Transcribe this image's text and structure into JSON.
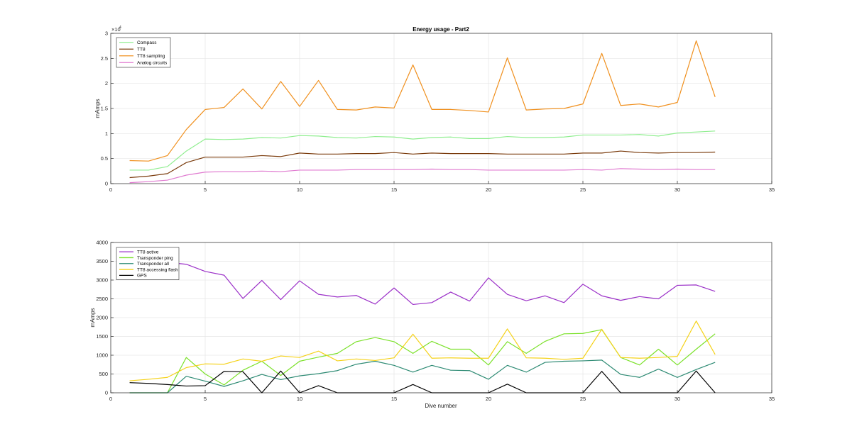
{
  "chart_data": [
    {
      "type": "line",
      "title": "Energy usage - Part2",
      "xlabel": "",
      "ylabel": "mAmps",
      "xlim": [
        0,
        35
      ],
      "ylim": [
        0,
        30000
      ],
      "xticks": [
        0,
        5,
        10,
        15,
        20,
        25,
        30,
        35
      ],
      "yticks": [
        0,
        5000,
        10000,
        15000,
        20000,
        25000,
        30000
      ],
      "ytick_labels": [
        "0",
        "0.5",
        "1",
        "1.5",
        "2",
        "2.5",
        "3"
      ],
      "exponent_label": "×10",
      "exponent_power": "4",
      "grid": true,
      "legend_position": "top-left",
      "x": [
        1,
        2,
        3,
        4,
        5,
        6,
        7,
        8,
        9,
        10,
        11,
        12,
        13,
        14,
        15,
        16,
        17,
        18,
        19,
        20,
        21,
        22,
        23,
        24,
        25,
        26,
        27,
        28,
        29,
        30,
        31,
        32
      ],
      "series": [
        {
          "name": "Compass",
          "color": "#90ee90",
          "values": [
            2700,
            2700,
            3400,
            6500,
            8900,
            8800,
            8900,
            9200,
            9100,
            9600,
            9500,
            9200,
            9100,
            9400,
            9300,
            8900,
            9200,
            9300,
            9000,
            9000,
            9400,
            9200,
            9200,
            9300,
            9700,
            9700,
            9700,
            9800,
            9500,
            10100,
            10300,
            10500
          ]
        },
        {
          "name": "TT8",
          "color": "#7a3b0c",
          "values": [
            1200,
            1500,
            2000,
            4200,
            5300,
            5300,
            5300,
            5600,
            5400,
            6100,
            5900,
            5900,
            6000,
            6000,
            6200,
            5900,
            6100,
            6000,
            6000,
            6000,
            5900,
            5900,
            5900,
            5900,
            6100,
            6100,
            6500,
            6200,
            6100,
            6200,
            6200,
            6300
          ]
        },
        {
          "name": "TT8 sampling",
          "color": "#f0901e",
          "values": [
            4600,
            4500,
            5600,
            10800,
            14800,
            15200,
            18900,
            14900,
            20400,
            15400,
            20600,
            14800,
            14700,
            15300,
            15100,
            23700,
            14800,
            14800,
            14600,
            14300,
            25100,
            14700,
            14900,
            15000,
            15900,
            26000,
            15600,
            15900,
            15300,
            16200,
            28500,
            17300
          ]
        },
        {
          "name": "Analog circuits",
          "color": "#e07ad0",
          "values": [
            200,
            400,
            700,
            1700,
            2300,
            2400,
            2400,
            2500,
            2400,
            2700,
            2700,
            2700,
            2800,
            2800,
            2800,
            2800,
            2900,
            2800,
            2800,
            2700,
            2700,
            2700,
            2700,
            2700,
            2800,
            2700,
            3000,
            2900,
            2800,
            2900,
            2800,
            2800
          ]
        }
      ]
    },
    {
      "type": "line",
      "title": "",
      "xlabel": "Dive number",
      "ylabel": "mAmps",
      "xlim": [
        0,
        35
      ],
      "ylim": [
        0,
        4000
      ],
      "xticks": [
        0,
        5,
        10,
        15,
        20,
        25,
        30,
        35
      ],
      "yticks": [
        0,
        500,
        1000,
        1500,
        2000,
        2500,
        3000,
        3500,
        4000
      ],
      "ytick_labels": [
        "0",
        "500",
        "1000",
        "1500",
        "2000",
        "2500",
        "3000",
        "3500",
        "4000"
      ],
      "grid": true,
      "legend_position": "top-left",
      "x": [
        1,
        2,
        3,
        4,
        5,
        6,
        7,
        8,
        9,
        10,
        11,
        12,
        13,
        14,
        15,
        16,
        17,
        18,
        19,
        20,
        21,
        22,
        23,
        24,
        25,
        26,
        27,
        28,
        29,
        30,
        31,
        32
      ],
      "series": [
        {
          "name": "TT8 active",
          "color": "#9b30c8",
          "values": [
            3450,
            3460,
            3470,
            3420,
            3230,
            3130,
            2510,
            2990,
            2480,
            2980,
            2620,
            2550,
            2590,
            2360,
            2790,
            2350,
            2400,
            2680,
            2440,
            3060,
            2620,
            2450,
            2580,
            2400,
            2890,
            2580,
            2460,
            2560,
            2500,
            2860,
            2870,
            2700
          ]
        },
        {
          "name": "Transponder ping",
          "color": "#7be12a",
          "values": [
            0,
            0,
            0,
            940,
            500,
            210,
            600,
            840,
            460,
            840,
            950,
            1050,
            1360,
            1470,
            1360,
            1050,
            1370,
            1160,
            1160,
            740,
            1360,
            1050,
            1370,
            1570,
            1580,
            1680,
            940,
            740,
            1160,
            740,
            1160,
            1570
          ]
        },
        {
          "name": "Transponder all",
          "color": "#2e8b74",
          "values": [
            0,
            0,
            0,
            440,
            310,
            170,
            320,
            490,
            350,
            450,
            510,
            590,
            760,
            840,
            730,
            550,
            730,
            600,
            590,
            360,
            730,
            550,
            810,
            840,
            850,
            870,
            490,
            410,
            630,
            410,
            620,
            810
          ]
        },
        {
          "name": "TT8 accessing flash",
          "color": "#f5d21a",
          "values": [
            320,
            360,
            410,
            670,
            770,
            760,
            900,
            840,
            980,
            940,
            1110,
            850,
            900,
            860,
            930,
            1560,
            920,
            930,
            920,
            920,
            1700,
            930,
            920,
            890,
            920,
            1690,
            940,
            920,
            940,
            970,
            1910,
            1020
          ]
        },
        {
          "name": "GPS",
          "color": "#000000",
          "values": [
            270,
            250,
            220,
            180,
            190,
            570,
            560,
            0,
            580,
            0,
            190,
            0,
            0,
            0,
            0,
            220,
            0,
            0,
            0,
            0,
            230,
            0,
            0,
            0,
            0,
            570,
            0,
            0,
            0,
            0,
            580,
            0
          ]
        }
      ]
    }
  ]
}
